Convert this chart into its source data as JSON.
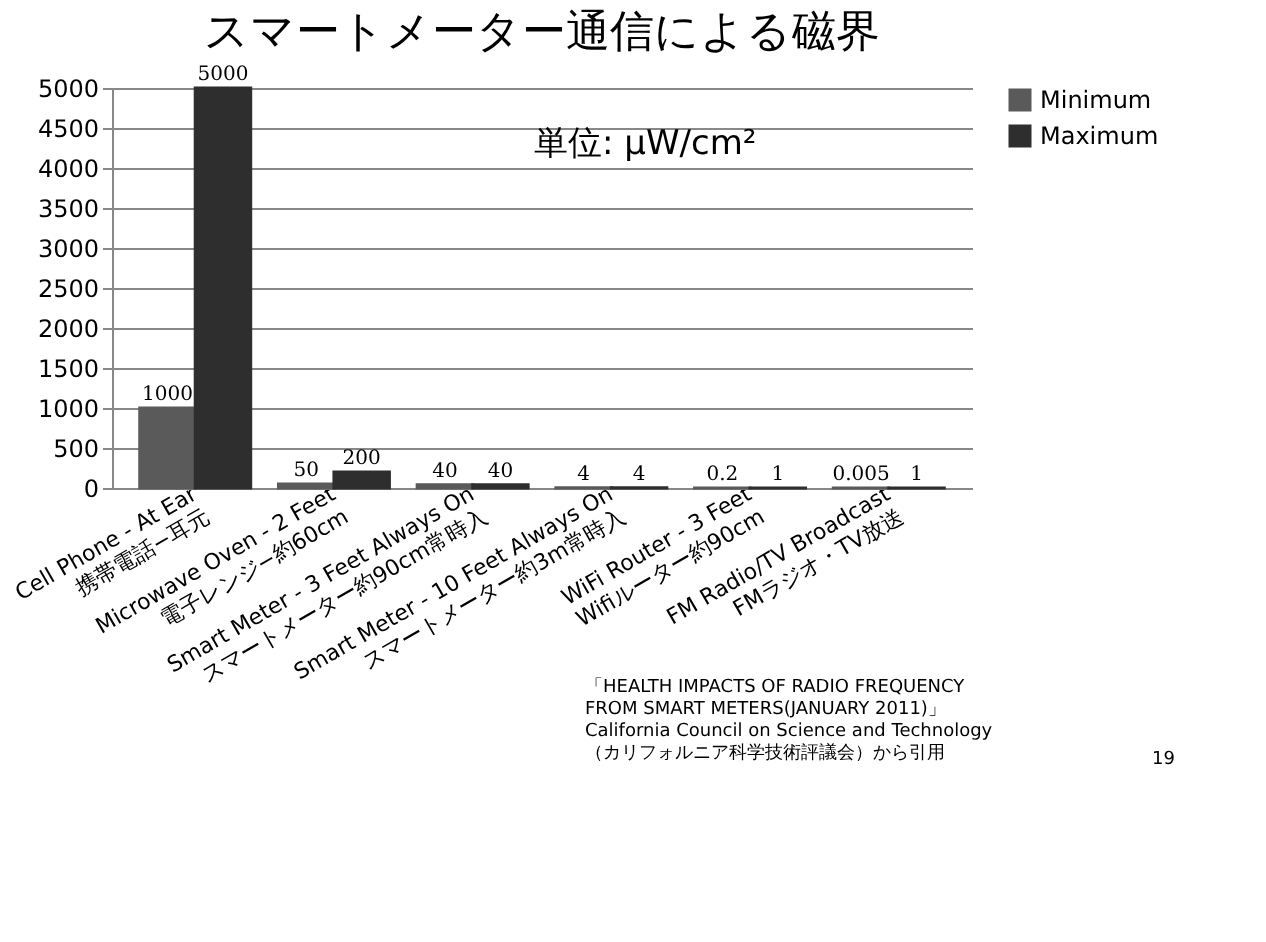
{
  "chart_data": {
    "type": "bar",
    "title": "スマートメーター通信による磁界",
    "categories": [
      "Cell Phone - At Ear\n携帯電話−耳元",
      "Microwave Oven - 2 Feet\n電子レンジ−約60cm",
      "Smart Meter - 3 Feet Always On\nスマートメーター約90cm常時入",
      "Smart Meter - 10 Feet Always On\nスマートメーター約3m常時入",
      "WiFi Router - 3 Feet\nWifiルーター約90cm",
      "FM Radio/TV Broadcast\nFMラジオ・TV放送"
    ],
    "series": [
      {
        "name": "Minimum",
        "color": "#5a5a5a",
        "values": [
          1000,
          50,
          40,
          4,
          0.2,
          0.005
        ]
      },
      {
        "name": "Maximum",
        "color": "#2e2e2e",
        "values": [
          5000,
          200,
          40,
          4,
          1,
          1
        ]
      }
    ],
    "ylim": [
      0,
      5000
    ],
    "yticks": [
      0,
      500,
      1000,
      1500,
      2000,
      2500,
      3000,
      3500,
      4000,
      4500,
      5000
    ],
    "grid": "y",
    "legend": "right",
    "data_labels": true,
    "annotations": [
      "単位: μW/cm²",
      "「HEALTH IMPACTS OF RADIO FREQUENCY\nFROM SMART METERS(JANUARY 2011)」\nCalifornia Council on Science and Technology\n（カリフォルニア科学技術評議会）から引用",
      "19"
    ]
  }
}
